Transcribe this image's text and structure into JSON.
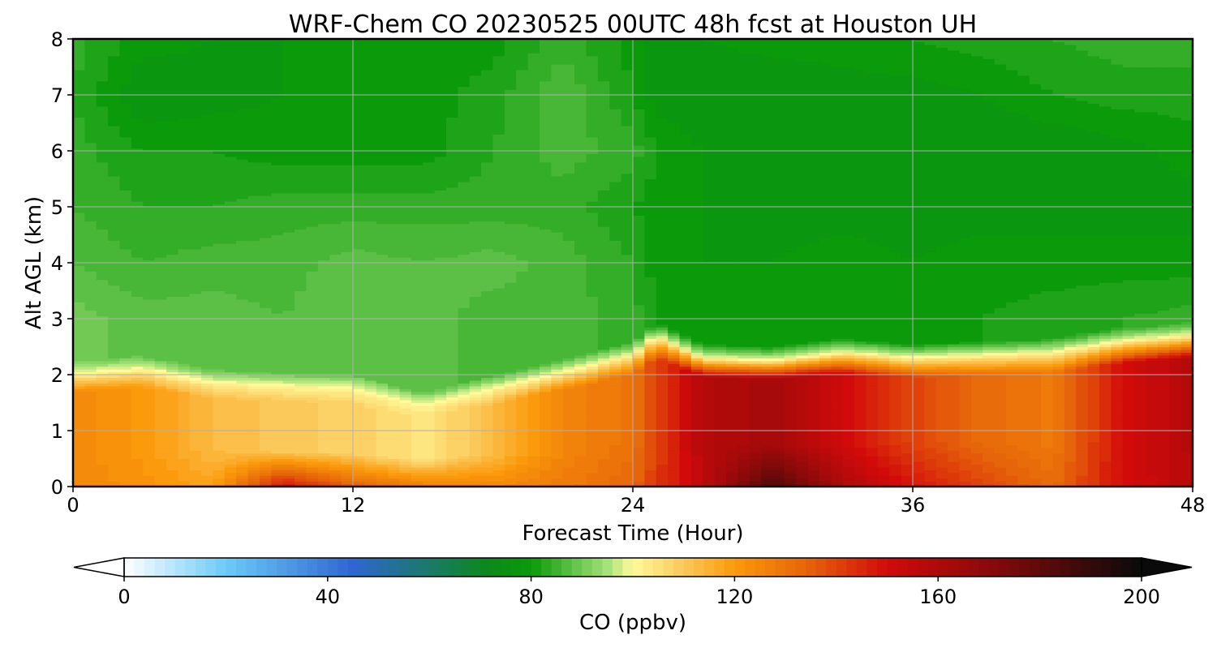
{
  "chart_data": {
    "type": "heatmap",
    "title": "WRF-Chem CO  20230525 00UTC 48h fcst at Houston UH",
    "xlabel": "Forecast Time (Hour)",
    "ylabel": "Alt AGL (km)",
    "xlim": [
      0,
      48
    ],
    "ylim": [
      0,
      8
    ],
    "x_ticks": [
      0,
      12,
      24,
      36,
      48
    ],
    "y_ticks": [
      0,
      1,
      2,
      3,
      4,
      5,
      6,
      7,
      8
    ],
    "grid": true,
    "x": [
      0,
      3,
      6,
      9,
      12,
      15,
      18,
      21,
      24,
      25,
      27,
      30,
      33,
      36,
      39,
      42,
      45,
      48
    ],
    "boundary_layer_top_km": [
      2.0,
      2.1,
      1.85,
      1.8,
      1.75,
      1.45,
      1.75,
      2.05,
      2.35,
      2.7,
      2.3,
      2.25,
      2.4,
      2.3,
      2.35,
      2.4,
      2.6,
      2.7
    ],
    "surface_co_ppbv": [
      125,
      122,
      118,
      150,
      135,
      128,
      125,
      128,
      133,
      142,
      155,
      185,
      160,
      148,
      140,
      132,
      150,
      157
    ],
    "mid_co_ppbv": [
      124,
      120,
      113,
      110,
      108,
      104,
      112,
      125,
      130,
      140,
      158,
      162,
      150,
      140,
      132,
      128,
      150,
      158
    ],
    "free_tropo_co_ppbv": [
      [
        90,
        88,
        88,
        87,
        89,
        88,
        86,
        86,
        84,
        81,
        80,
        80,
        80,
        80,
        81,
        82,
        83,
        84
      ],
      [
        87,
        85,
        86,
        86,
        88,
        87,
        88,
        86,
        83,
        80,
        79,
        79,
        80,
        79,
        80,
        80,
        80,
        80
      ],
      [
        85,
        83,
        83,
        84,
        84,
        84,
        84,
        84,
        81,
        80,
        79,
        78,
        78,
        78,
        78,
        78,
        78,
        78
      ],
      [
        84,
        81,
        81,
        80,
        80,
        80,
        83,
        86,
        84,
        81,
        79,
        78,
        78,
        77,
        77,
        77,
        78,
        80
      ],
      [
        83,
        77,
        78,
        79,
        79,
        80,
        82,
        87,
        81,
        78,
        77,
        77,
        78,
        78,
        79,
        81,
        82,
        82
      ],
      [
        84,
        80,
        79,
        79,
        79,
        80,
        80,
        84,
        80,
        78,
        79,
        80,
        80,
        81,
        82,
        83,
        84,
        84
      ]
    ],
    "free_tropo_levels_km": [
      3,
      4,
      5,
      6,
      7,
      8
    ],
    "colorbar": {
      "label": "CO  (ppbv)",
      "min": 0,
      "max": 200,
      "ticks": [
        0,
        40,
        80,
        120,
        160,
        200
      ],
      "extend": "both",
      "colors": [
        {
          "v": 0,
          "c": "#ffffff"
        },
        {
          "v": 20,
          "c": "#6ccaf8"
        },
        {
          "v": 45,
          "c": "#2e66d2"
        },
        {
          "v": 60,
          "c": "#1a7a68"
        },
        {
          "v": 72,
          "c": "#0a8a18"
        },
        {
          "v": 80,
          "c": "#0a9a0a"
        },
        {
          "v": 95,
          "c": "#a6e27a"
        },
        {
          "v": 100,
          "c": "#fffa9a"
        },
        {
          "v": 110,
          "c": "#fbc85a"
        },
        {
          "v": 120,
          "c": "#fb9a0a"
        },
        {
          "v": 135,
          "c": "#e5600a"
        },
        {
          "v": 150,
          "c": "#d20a0a"
        },
        {
          "v": 170,
          "c": "#8a0a0a"
        },
        {
          "v": 200,
          "c": "#0a0a0a"
        }
      ]
    }
  }
}
